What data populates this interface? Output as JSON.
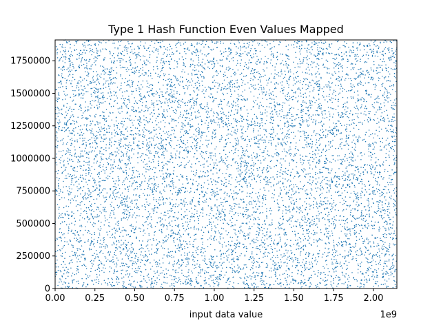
{
  "chart_data": {
    "type": "scatter",
    "title": "Type 1 Hash Function Even Values Mapped",
    "xlabel": "input data value",
    "ylabel": "",
    "x_offset_text": "1e9",
    "xlim": [
      0,
      2147483647
    ],
    "ylim": [
      0,
      1910000
    ],
    "x_ticks": [
      0.0,
      0.25,
      0.5,
      0.75,
      1.0,
      1.25,
      1.5,
      1.75,
      2.0
    ],
    "x_tick_labels": [
      "0.00",
      "0.25",
      "0.50",
      "0.75",
      "1.00",
      "1.25",
      "1.50",
      "1.75",
      "2.00"
    ],
    "y_ticks": [
      0,
      250000,
      500000,
      750000,
      1000000,
      1250000,
      1500000,
      1750000
    ],
    "y_tick_labels": [
      "0",
      "250000",
      "500000",
      "750000",
      "1000000",
      "1250000",
      "1500000",
      "1750000"
    ],
    "series": [
      {
        "marker": "dot",
        "color": "#1f77b4",
        "approx_point_count": 9000,
        "distribution": "uniform over the full x and y range"
      }
    ],
    "grid": false,
    "legend": "none"
  }
}
